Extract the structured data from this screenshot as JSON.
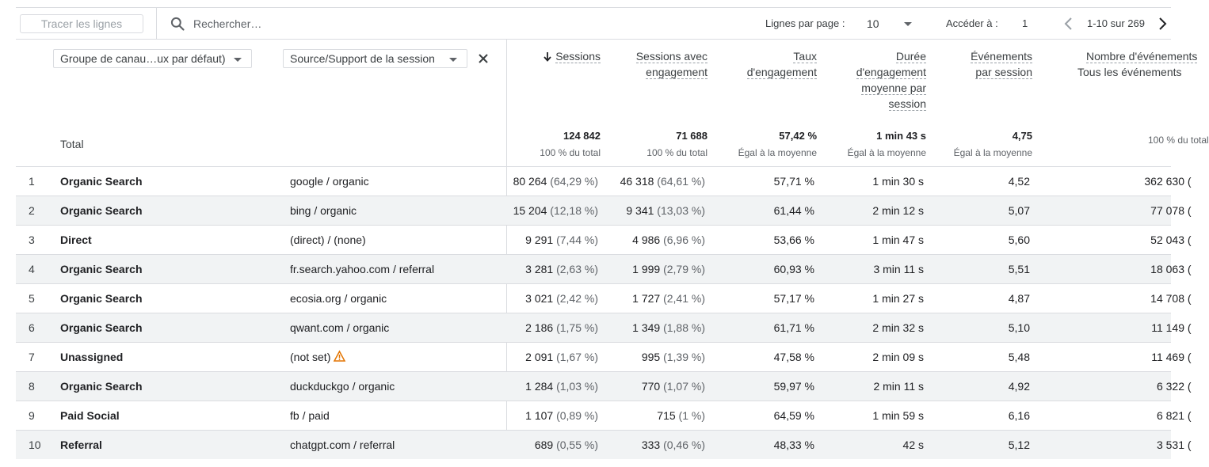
{
  "toolbar": {
    "plot_rows_label": "Tracer les lignes",
    "search_placeholder": "Rechercher…",
    "rows_per_page_label": "Lignes par page :",
    "rows_per_page_value": "10",
    "goto_label": "Accéder à :",
    "goto_value": "1",
    "pagination_range": "1-10 sur 269"
  },
  "dimensions": {
    "primary": "Groupe de canau…ux par défaut)",
    "secondary": "Source/Support de la session"
  },
  "metrics_headers": {
    "sessions": "Sessions",
    "engaged_1": "Sessions avec",
    "engaged_2": "engagement",
    "rate_1": "Taux",
    "rate_2": "d'engagement",
    "dur_1": "Durée",
    "dur_2": "d'engagement",
    "dur_3": "moyenne par",
    "dur_4": "session",
    "events_1": "Événements",
    "events_2": "par session",
    "count_1": "Nombre d'événements",
    "count_2": "Tous les événements"
  },
  "totals": {
    "label": "Total",
    "sessions": "124 842",
    "sessions_sub": "100 % du total",
    "engaged": "71 688",
    "engaged_sub": "100 % du total",
    "rate": "57,42 %",
    "rate_sub": "Égal à la moyenne",
    "duration": "1 min 43 s",
    "duration_sub": "Égal à la moyenne",
    "events": "4,75",
    "events_sub": "Égal à la moyenne",
    "count_sub": "100 % du total"
  },
  "rows": [
    {
      "idx": "1",
      "channel": "Organic Search",
      "source": "google / organic",
      "warn": false,
      "sessions": "80 264",
      "sessions_pct": "(64,29 %)",
      "engaged": "46 318",
      "engaged_pct": "(64,61 %)",
      "rate": "57,71 %",
      "duration": "1 min 30 s",
      "events": "4,52",
      "count": "362 630 ("
    },
    {
      "idx": "2",
      "channel": "Organic Search",
      "source": "bing / organic",
      "warn": false,
      "sessions": "15 204",
      "sessions_pct": "(12,18 %)",
      "engaged": "9 341",
      "engaged_pct": "(13,03 %)",
      "rate": "61,44 %",
      "duration": "2 min 12 s",
      "events": "5,07",
      "count": "77 078 ("
    },
    {
      "idx": "3",
      "channel": "Direct",
      "source": "(direct) / (none)",
      "warn": false,
      "sessions": "9 291",
      "sessions_pct": "(7,44 %)",
      "engaged": "4 986",
      "engaged_pct": "(6,96 %)",
      "rate": "53,66 %",
      "duration": "1 min 47 s",
      "events": "5,60",
      "count": "52 043 ("
    },
    {
      "idx": "4",
      "channel": "Organic Search",
      "source": "fr.search.yahoo.com / referral",
      "warn": false,
      "sessions": "3 281",
      "sessions_pct": "(2,63 %)",
      "engaged": "1 999",
      "engaged_pct": "(2,79 %)",
      "rate": "60,93 %",
      "duration": "3 min 11 s",
      "events": "5,51",
      "count": "18 063 ("
    },
    {
      "idx": "5",
      "channel": "Organic Search",
      "source": "ecosia.org / organic",
      "warn": false,
      "sessions": "3 021",
      "sessions_pct": "(2,42 %)",
      "engaged": "1 727",
      "engaged_pct": "(2,41 %)",
      "rate": "57,17 %",
      "duration": "1 min 27 s",
      "events": "4,87",
      "count": "14 708 ("
    },
    {
      "idx": "6",
      "channel": "Organic Search",
      "source": "qwant.com / organic",
      "warn": false,
      "sessions": "2 186",
      "sessions_pct": "(1,75 %)",
      "engaged": "1 349",
      "engaged_pct": "(1,88 %)",
      "rate": "61,71 %",
      "duration": "2 min 32 s",
      "events": "5,10",
      "count": "11 149 ("
    },
    {
      "idx": "7",
      "channel": "Unassigned",
      "source": "(not set)",
      "warn": true,
      "sessions": "2 091",
      "sessions_pct": "(1,67 %)",
      "engaged": "995",
      "engaged_pct": "(1,39 %)",
      "rate": "47,58 %",
      "duration": "2 min 09 s",
      "events": "5,48",
      "count": "11 469 ("
    },
    {
      "idx": "8",
      "channel": "Organic Search",
      "source": "duckduckgo / organic",
      "warn": false,
      "sessions": "1 284",
      "sessions_pct": "(1,03 %)",
      "engaged": "770",
      "engaged_pct": "(1,07 %)",
      "rate": "59,97 %",
      "duration": "2 min 11 s",
      "events": "4,92",
      "count": "6 322 ("
    },
    {
      "idx": "9",
      "channel": "Paid Social",
      "source": "fb / paid",
      "warn": false,
      "sessions": "1 107",
      "sessions_pct": "(0,89 %)",
      "engaged": "715",
      "engaged_pct": "(1 %)",
      "rate": "64,59 %",
      "duration": "1 min 59 s",
      "events": "6,16",
      "count": "6 821 ("
    },
    {
      "idx": "10",
      "channel": "Referral",
      "source": "chatgpt.com / referral",
      "warn": false,
      "sessions": "689",
      "sessions_pct": "(0,55 %)",
      "engaged": "333",
      "engaged_pct": "(0,46 %)",
      "rate": "48,33 %",
      "duration": "42 s",
      "events": "5,12",
      "count": "3 531 ("
    }
  ],
  "icons": {
    "search": "search-icon",
    "sort": "arrow-down-icon",
    "close": "close-icon",
    "warning": "warning-icon",
    "prev": "chevron-left-icon",
    "next": "chevron-right-icon"
  },
  "colors": {
    "row_stripe": "#f1f3f4",
    "border": "#dadce0",
    "warning": "#e37400",
    "text": "#202124",
    "muted": "#5f6368"
  }
}
